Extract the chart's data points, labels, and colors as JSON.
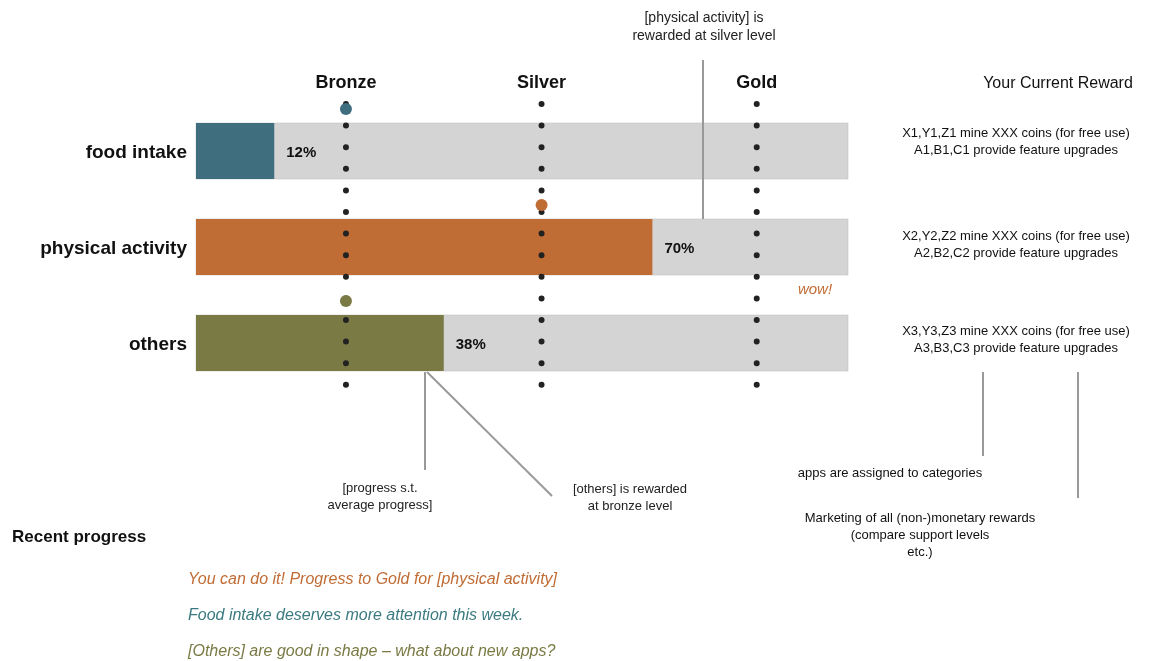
{
  "chart_data": {
    "type": "bar",
    "orientation": "horizontal",
    "categories": [
      "food intake",
      "physical activity",
      "others"
    ],
    "series": [
      {
        "colors": [
          "#3f6e7e",
          "#c06c35",
          "#7a7a45"
        ],
        "values": [
          12,
          70,
          38
        ],
        "value_labels": [
          "12%",
          "70%",
          "38%"
        ]
      },
      {
        "type": "scatter",
        "colors": [
          "#3f6e7e",
          "#c06c35",
          "#7a7a45"
        ],
        "values": [
          23,
          53,
          23
        ]
      }
    ],
    "xlim": [
      0,
      100
    ],
    "tick_labels": "y",
    "marker": "circle",
    "ref_lines": [
      {
        "axis": "x",
        "value": 23,
        "label": "Bronze",
        "line_style": "dotted",
        "color": "#222222"
      },
      {
        "axis": "x",
        "value": 53,
        "label": "Silver",
        "line_style": "dotted",
        "color": "#222222"
      },
      {
        "axis": "x",
        "value": 86,
        "label": "Gold",
        "line_style": "dotted",
        "color": "#222222"
      }
    ],
    "annotations": [
      "[physical activity] is\nrewarded at silver level",
      "Your Current Reward",
      "X1,Y1,Z1 mine XXX coins (for free use)\nA1,B1,C1 provide feature upgrades",
      "X2,Y2,Z2 mine XXX coins (for free use)\nA2,B2,C2 provide feature upgrades",
      "X3,Y3,Z3 mine XXX coins (for free use)\nA3,B3,C3 provide feature upgrades",
      "wow!",
      "[progress s.t.\naverage progress]",
      "[others] is rewarded\nat bronze level",
      "apps are assigned to categories",
      "Marketing of all (non-)monetary rewards\n(compare support levels\netc.)",
      "Recent progress",
      "You can do it! Progress to Gold  for [physical activity]",
      "Food intake deserves more attention this week.",
      "[Others] are good in shape – what about new apps?"
    ]
  }
}
